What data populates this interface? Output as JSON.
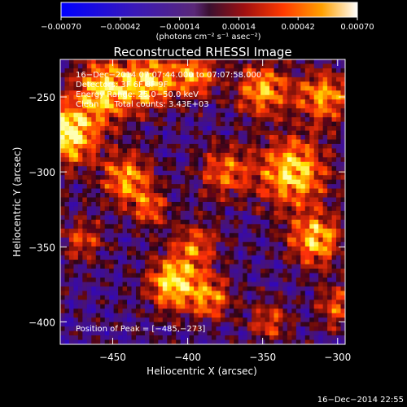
{
  "chart_data": {
    "type": "heatmap",
    "title": "Reconstructed RHESSI Image",
    "xlabel": "Heliocentric X (arcsec)",
    "ylabel": "Heliocentric Y (arcsec)",
    "xlim": [
      -485,
      -295
    ],
    "ylim": [
      -415,
      -225
    ],
    "x_ticks": [
      -450,
      -400,
      -350,
      -300
    ],
    "y_ticks": [
      -250,
      -300,
      -350,
      -400
    ],
    "x_tick_labels": [
      "−450",
      "−400",
      "−350",
      "−300"
    ],
    "y_tick_labels": [
      "−250",
      "−300",
      "−350",
      "−400"
    ],
    "colorbar": {
      "range": [
        -0.0007,
        0.0007
      ],
      "tick_values": [
        -0.0007,
        -0.00042,
        -0.00014,
        0.00014,
        0.00042,
        0.0007
      ],
      "tick_labels": [
        "−0.00070",
        "−0.00042",
        "−0.00014",
        "0.00014",
        "0.00042",
        "0.00070"
      ],
      "unit_label": "(photons cm⁻² s⁻¹ asec⁻²)"
    },
    "info_lines": [
      "16−Dec−2014 07:07:44.000 to 07:07:58.000",
      "Detectors: 3F 6F 8F 9F",
      "Energy Range: 25.0−50.0 keV",
      "Clean      Total counts: 3.43E+03"
    ],
    "peak_text": "Position of Peak = [−485,−273]",
    "peak": [
      -485,
      -273
    ],
    "colormap": "heat-red-yellow-white (negative: blue→purple)",
    "grid": false
  },
  "footer": {
    "timestamp": "16−Dec−2014 22:55"
  }
}
